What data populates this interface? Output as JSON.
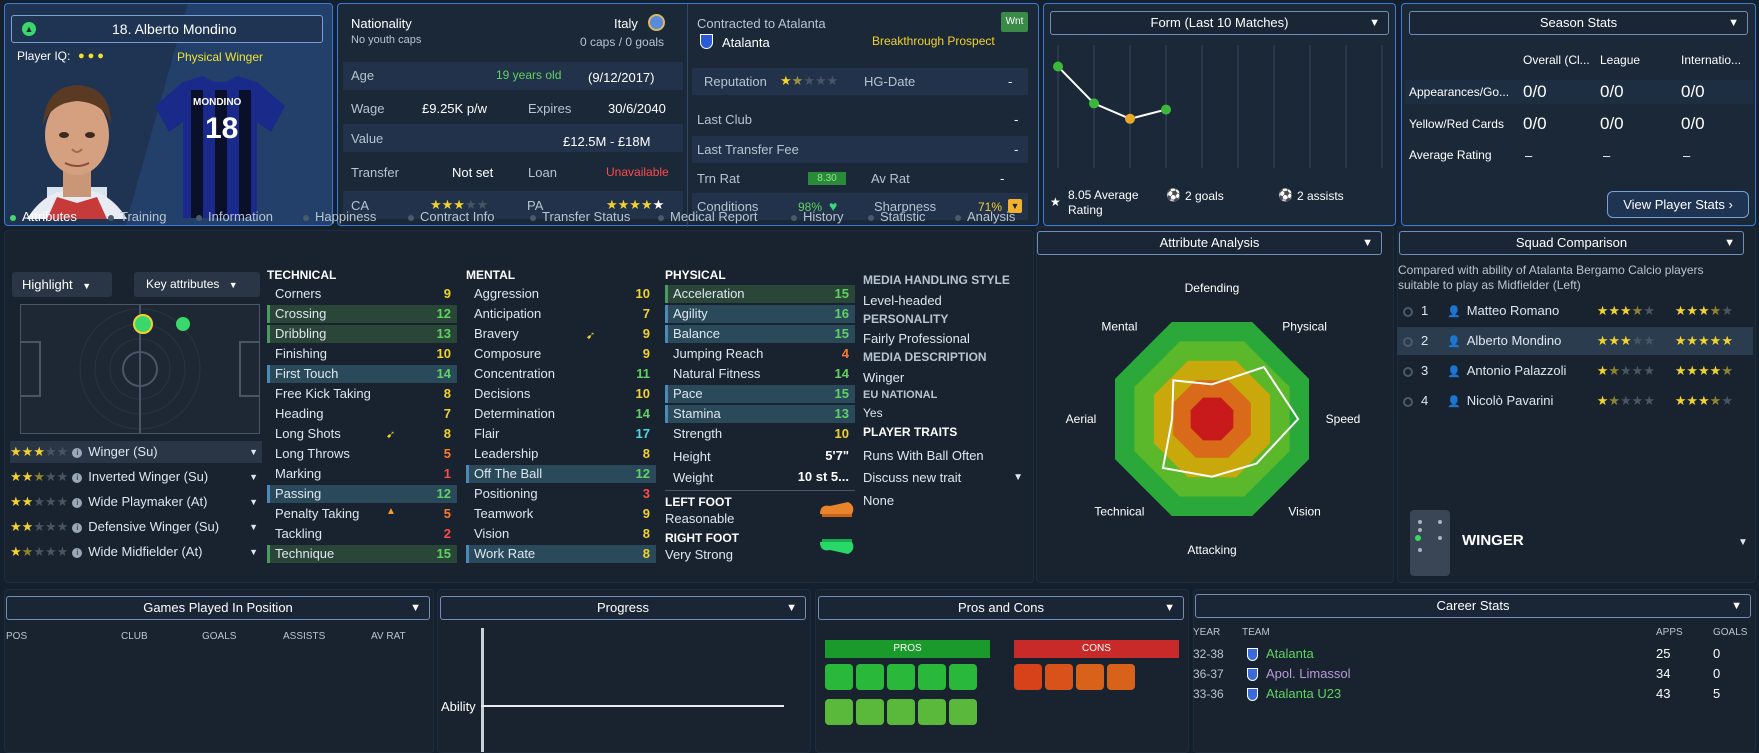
{
  "player": {
    "name_line": "18. Alberto Mondino",
    "iq_label": "Player IQ:",
    "role_title": "Physical Winger",
    "shirt_name": "MONDINO",
    "shirt_number": "18",
    "nationality_label": "Nationality",
    "nationality": "Italy",
    "youth_caps": "No youth caps",
    "caps_goals": "0 caps / 0 goals",
    "age_label": "Age",
    "age": "19 years old",
    "dob": "(9/12/2017)",
    "wage_label": "Wage",
    "wage": "£9.25K p/w",
    "expires_label": "Expires",
    "expires": "30/6/2040",
    "value_label": "Value",
    "value": "£12.5M - £18M",
    "transfer_label": "Transfer",
    "transfer": "Not set",
    "loan_label": "Loan",
    "loan": "Unavailable",
    "ca_label": "CA",
    "ca_stars": 3,
    "pa_label": "PA",
    "pa_stars": 5,
    "contract_label": "Contracted to Atalanta",
    "club": "Atalanta",
    "badge": "Wnt",
    "prospect": "Breakthrough Prospect",
    "reputation_label": "Reputation",
    "reputation_stars": 1.5,
    "hg_label": "HG-Date",
    "hg": "-",
    "last_club_label": "Last Club",
    "last_club": "-",
    "last_fee_label": "Last Transfer Fee",
    "last_fee": "-",
    "trn_label": "Trn Rat",
    "trn": "8.30",
    "av_label": "Av Rat",
    "av": "-",
    "cond_label": "Conditions",
    "cond": "98%",
    "sharp_label": "Sharpness",
    "sharp": "71%"
  },
  "form": {
    "title": "Form (Last 10 Matches)",
    "avg": "8.05 Average Rating",
    "goals": "2 goals",
    "assists": "2 assists",
    "points": [
      9.3,
      8.1,
      7.6,
      7.9
    ]
  },
  "season": {
    "title": "Season Stats",
    "cols": [
      "Overall (Cl...",
      "League",
      "Internatio..."
    ],
    "rows": [
      {
        "label": "Appearances/Go...",
        "vals": [
          "0/0",
          "0/0",
          "0/0"
        ]
      },
      {
        "label": "Yellow/Red Cards",
        "vals": [
          "0/0",
          "0/0",
          "0/0"
        ]
      },
      {
        "label": "Average Rating",
        "vals": [
          "–",
          "–",
          "–"
        ]
      }
    ],
    "button": "View Player Stats"
  },
  "tabs": [
    "Attributes",
    "Training",
    "Information",
    "Happiness",
    "Contract Info",
    "Transfer Status",
    "Medical Report",
    "History",
    "Statistic",
    "Analysis"
  ],
  "controls": {
    "highlight": "Highlight",
    "key": "Key attributes"
  },
  "roles": [
    {
      "stars": 3,
      "label": "Winger (Su)"
    },
    {
      "stars": 2.5,
      "label": "Inverted Winger (Su)"
    },
    {
      "stars": 2,
      "label": "Wide Playmaker (At)"
    },
    {
      "stars": 2,
      "label": "Defensive Winger (Su)"
    },
    {
      "stars": 1.5,
      "label": "Wide Midfielder (At)"
    }
  ],
  "technical": {
    "title": "TECHNICAL",
    "items": [
      {
        "n": "Corners",
        "v": "9",
        "c": "y"
      },
      {
        "n": "Crossing",
        "v": "12",
        "c": "g",
        "h": 2
      },
      {
        "n": "Dribbling",
        "v": "13",
        "c": "g",
        "h": 2
      },
      {
        "n": "Finishing",
        "v": "10",
        "c": "y"
      },
      {
        "n": "First Touch",
        "v": "14",
        "c": "g",
        "h": 1
      },
      {
        "n": "Free Kick Taking",
        "v": "8",
        "c": "y"
      },
      {
        "n": "Heading",
        "v": "7",
        "c": "y"
      },
      {
        "n": "Long Shots",
        "v": "8",
        "c": "y"
      },
      {
        "n": "Long Throws",
        "v": "5",
        "c": "o"
      },
      {
        "n": "Marking",
        "v": "1",
        "c": "r"
      },
      {
        "n": "Passing",
        "v": "12",
        "c": "g",
        "h": 1
      },
      {
        "n": "Penalty Taking",
        "v": "5",
        "c": "o"
      },
      {
        "n": "Tackling",
        "v": "2",
        "c": "r"
      },
      {
        "n": "Technique",
        "v": "15",
        "c": "g",
        "h": 2
      }
    ]
  },
  "mental": {
    "title": "MENTAL",
    "items": [
      {
        "n": "Aggression",
        "v": "10",
        "c": "y"
      },
      {
        "n": "Anticipation",
        "v": "7",
        "c": "y"
      },
      {
        "n": "Bravery",
        "v": "9",
        "c": "y"
      },
      {
        "n": "Composure",
        "v": "9",
        "c": "y"
      },
      {
        "n": "Concentration",
        "v": "11",
        "c": "g"
      },
      {
        "n": "Decisions",
        "v": "10",
        "c": "y"
      },
      {
        "n": "Determination",
        "v": "14",
        "c": "g"
      },
      {
        "n": "Flair",
        "v": "17",
        "c": "c"
      },
      {
        "n": "Leadership",
        "v": "8",
        "c": "y"
      },
      {
        "n": "Off The Ball",
        "v": "12",
        "c": "g",
        "h": 1
      },
      {
        "n": "Positioning",
        "v": "3",
        "c": "r"
      },
      {
        "n": "Teamwork",
        "v": "9",
        "c": "y"
      },
      {
        "n": "Vision",
        "v": "8",
        "c": "y"
      },
      {
        "n": "Work Rate",
        "v": "8",
        "c": "y",
        "h": 1
      }
    ]
  },
  "physical": {
    "title": "PHYSICAL",
    "items": [
      {
        "n": "Acceleration",
        "v": "15",
        "c": "g",
        "h": 2
      },
      {
        "n": "Agility",
        "v": "16",
        "c": "g",
        "h": 1
      },
      {
        "n": "Balance",
        "v": "15",
        "c": "g",
        "h": 1
      },
      {
        "n": "Jumping Reach",
        "v": "4",
        "c": "o"
      },
      {
        "n": "Natural Fitness",
        "v": "14",
        "c": "g"
      },
      {
        "n": "Pace",
        "v": "15",
        "c": "g",
        "h": 1
      },
      {
        "n": "Stamina",
        "v": "13",
        "c": "g",
        "h": 1
      },
      {
        "n": "Strength",
        "v": "10",
        "c": "y"
      }
    ],
    "height_label": "Height",
    "height": "5'7\"",
    "weight_label": "Weight",
    "weight": "10 st 5...",
    "left_foot_label": "LEFT FOOT",
    "left_foot": "Reasonable",
    "right_foot_label": "RIGHT FOOT",
    "right_foot": "Very Strong"
  },
  "media": {
    "style_label": "MEDIA HANDLING STYLE",
    "style": "Level-headed",
    "personality_label": "PERSONALITY",
    "personality": "Fairly Professional",
    "desc_label": "MEDIA DESCRIPTION",
    "desc": "Winger",
    "eu_label": "EU NATIONAL",
    "eu": "Yes",
    "traits_label": "PLAYER TRAITS",
    "trait1": "Runs With Ball Often",
    "trait2": "Discuss new trait",
    "trait3": "None"
  },
  "analysis": {
    "title": "Attribute Analysis",
    "axes": [
      "Defending",
      "Physical",
      "Speed",
      "Vision",
      "Attacking",
      "Technical",
      "Aerial",
      "Mental"
    ],
    "values": [
      0.33,
      0.7,
      0.82,
      0.6,
      0.55,
      0.66,
      0.38,
      0.52
    ]
  },
  "squad": {
    "title": "Squad Comparison",
    "note": "Compared with ability of Atalanta Bergamo Calcio players suitable to play as Midfielder (Left)",
    "rows": [
      {
        "rank": "1",
        "name": "Matteo Romano",
        "ca": 3.5,
        "pa": 3.5
      },
      {
        "rank": "2",
        "name": "Alberto Mondino",
        "ca": 3,
        "pa": 5
      },
      {
        "rank": "3",
        "name": "Antonio Palazzoli",
        "ca": 1.5,
        "pa": 4.5
      },
      {
        "rank": "4",
        "name": "Nicolò Pavarini",
        "ca": 1.5,
        "pa": 3.5
      }
    ],
    "position": "WINGER"
  },
  "games": {
    "title": "Games Played In Position",
    "cols": [
      "POS",
      "CLUB",
      "GOALS",
      "ASSISTS",
      "AV RAT"
    ]
  },
  "progress": {
    "title": "Progress",
    "label": "Ability"
  },
  "pros_cons": {
    "title": "Pros and Cons",
    "pros": "PROS",
    "cons": "CONS"
  },
  "career": {
    "title": "Career Stats",
    "cols": [
      "YEAR",
      "TEAM",
      "APPS",
      "GOALS"
    ],
    "rows": [
      {
        "year": "32-38",
        "team": "Atalanta",
        "apps": "25",
        "goals": "0",
        "color": "#5fd35f"
      },
      {
        "year": "36-37",
        "team": "Apol. Limassol",
        "apps": "34",
        "goals": "0",
        "color": "#b89ad8"
      },
      {
        "year": "33-36",
        "team": "Atalanta U23",
        "apps": "43",
        "goals": "5",
        "color": "#5fd35f"
      }
    ]
  }
}
